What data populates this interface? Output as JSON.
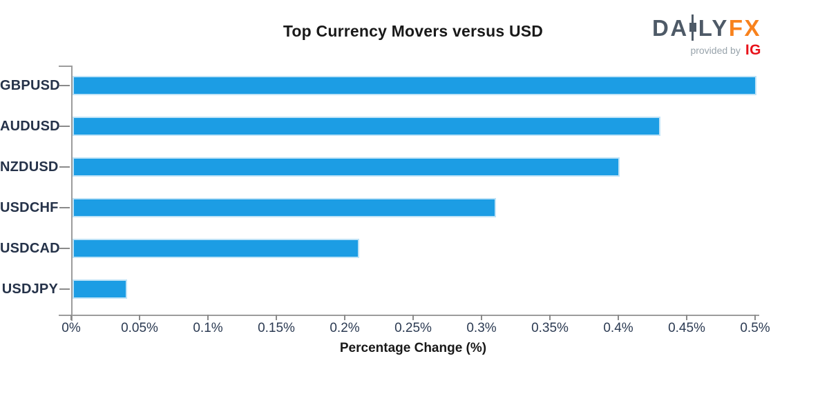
{
  "chart_data": {
    "type": "bar",
    "orientation": "horizontal",
    "title": "Top Currency Movers versus USD",
    "xlabel": "Percentage Change (%)",
    "ylabel": "",
    "categories": [
      "GBPUSD",
      "AUDUSD",
      "NZDUSD",
      "USDCHF",
      "USDCAD",
      "USDJPY"
    ],
    "values": [
      0.5,
      0.43,
      0.4,
      0.31,
      0.21,
      0.04
    ],
    "unit": "%",
    "xlim": [
      0,
      0.5
    ],
    "xticks": [
      0,
      0.05,
      0.1,
      0.15,
      0.2,
      0.25,
      0.3,
      0.35,
      0.4,
      0.45,
      0.5
    ],
    "xtick_labels": [
      "0%",
      "0.05%",
      "0.1%",
      "0.15%",
      "0.2%",
      "0.25%",
      "0.3%",
      "0.35%",
      "0.4%",
      "0.45%",
      "0.5%"
    ],
    "grid": false,
    "legend": null
  },
  "logo": {
    "part_da": "DA",
    "part_ly": "LY",
    "part_fx": "FX",
    "provided_by": "provided by",
    "ig": "IG"
  },
  "colors": {
    "bar": "#1C9DE4",
    "bar_edge": "#BFE3F7",
    "axis_gray": "#9C9C9C",
    "tick_gray": "#8A8A8A",
    "title": "#191919",
    "y_label": "#253249",
    "x_tick_label": "#2B3A52",
    "logo_slate": "#4E5A67",
    "logo_orange": "#F8821D",
    "ig_red": "#E8121A",
    "provided_gray": "#98A3AB"
  }
}
